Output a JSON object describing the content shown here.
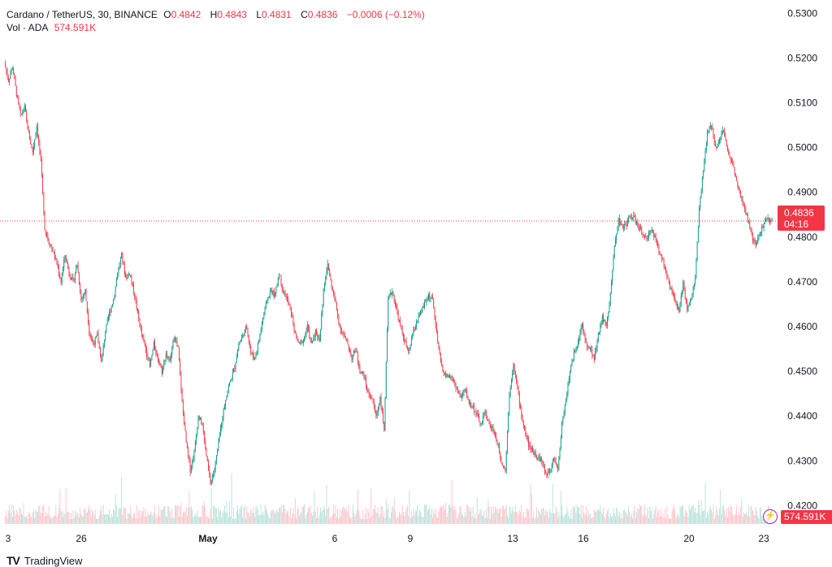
{
  "legend": {
    "symbol": "Cardano / TetherUS, 30, BINANCE",
    "o_label": "O",
    "o": "0.4842",
    "h_label": "H",
    "h": "0.4843",
    "l_label": "L",
    "l": "0.4831",
    "c_label": "C",
    "c": "0.4836",
    "change": "−0.0006 (−0.12%)",
    "vol_label": "Vol · ADA",
    "vol": "574.591K"
  },
  "price_badge": {
    "price": "0.4836",
    "countdown": "04:16"
  },
  "vol_badge": "574.591K",
  "brand": {
    "logo": "TV",
    "name": "TradingView"
  },
  "colors": {
    "up": "#089981",
    "down": "#f23645",
    "last_price_line": "#f23645",
    "axis_text": "#131722"
  },
  "chart_data": {
    "type": "line",
    "title": "Cardano / TetherUS, 30, BINANCE",
    "y_ticks": [
      "0.5300",
      "0.5200",
      "0.5100",
      "0.5000",
      "0.4900",
      "0.4800",
      "0.4700",
      "0.4600",
      "0.4500",
      "0.4400",
      "0.4300",
      "0.4200"
    ],
    "ylim": [
      0.415,
      0.5315
    ],
    "x_ticks": [
      "3",
      "26",
      "May",
      "6",
      "9",
      "13",
      "16",
      "20",
      "23"
    ],
    "last_price": 0.4836,
    "grid": false,
    "series": [
      {
        "values": [
          0.519,
          0.515,
          0.518,
          0.512,
          0.507,
          0.509,
          0.503,
          0.499,
          0.505,
          0.497,
          0.482,
          0.479,
          0.477,
          0.474,
          0.47,
          0.476,
          0.472,
          0.47,
          0.474,
          0.466,
          0.468,
          0.459,
          0.456,
          0.458,
          0.452,
          0.459,
          0.463,
          0.466,
          0.472,
          0.476,
          0.471,
          0.472,
          0.468,
          0.463,
          0.458,
          0.455,
          0.451,
          0.456,
          0.453,
          0.45,
          0.454,
          0.452,
          0.458,
          0.455,
          0.443,
          0.434,
          0.428,
          0.432,
          0.44,
          0.438,
          0.431,
          0.425,
          0.428,
          0.434,
          0.44,
          0.445,
          0.448,
          0.451,
          0.456,
          0.458,
          0.46,
          0.454,
          0.453,
          0.457,
          0.462,
          0.466,
          0.468,
          0.467,
          0.472,
          0.468,
          0.466,
          0.463,
          0.458,
          0.456,
          0.457,
          0.46,
          0.456,
          0.459,
          0.457,
          0.468,
          0.474,
          0.469,
          0.465,
          0.46,
          0.458,
          0.456,
          0.453,
          0.455,
          0.45,
          0.449,
          0.445,
          0.444,
          0.44,
          0.444,
          0.437,
          0.466,
          0.468,
          0.464,
          0.46,
          0.457,
          0.454,
          0.458,
          0.461,
          0.463,
          0.465,
          0.467,
          0.466,
          0.458,
          0.452,
          0.449,
          0.449,
          0.448,
          0.446,
          0.444,
          0.446,
          0.443,
          0.442,
          0.44,
          0.438,
          0.441,
          0.438,
          0.437,
          0.434,
          0.43,
          0.428,
          0.445,
          0.452,
          0.446,
          0.44,
          0.436,
          0.433,
          0.432,
          0.431,
          0.43,
          0.427,
          0.428,
          0.431,
          0.428,
          0.438,
          0.444,
          0.45,
          0.454,
          0.457,
          0.46,
          0.456,
          0.455,
          0.453,
          0.458,
          0.462,
          0.46,
          0.467,
          0.478,
          0.484,
          0.482,
          0.483,
          0.485,
          0.484,
          0.482,
          0.481,
          0.479,
          0.482,
          0.48,
          0.477,
          0.475,
          0.471,
          0.468,
          0.466,
          0.463,
          0.47,
          0.464,
          0.466,
          0.471,
          0.486,
          0.495,
          0.503,
          0.505,
          0.5,
          0.502,
          0.504,
          0.499,
          0.497,
          0.494,
          0.49,
          0.487,
          0.484,
          0.48,
          0.478,
          0.481,
          0.483,
          0.484,
          0.4836
        ]
      }
    ]
  }
}
